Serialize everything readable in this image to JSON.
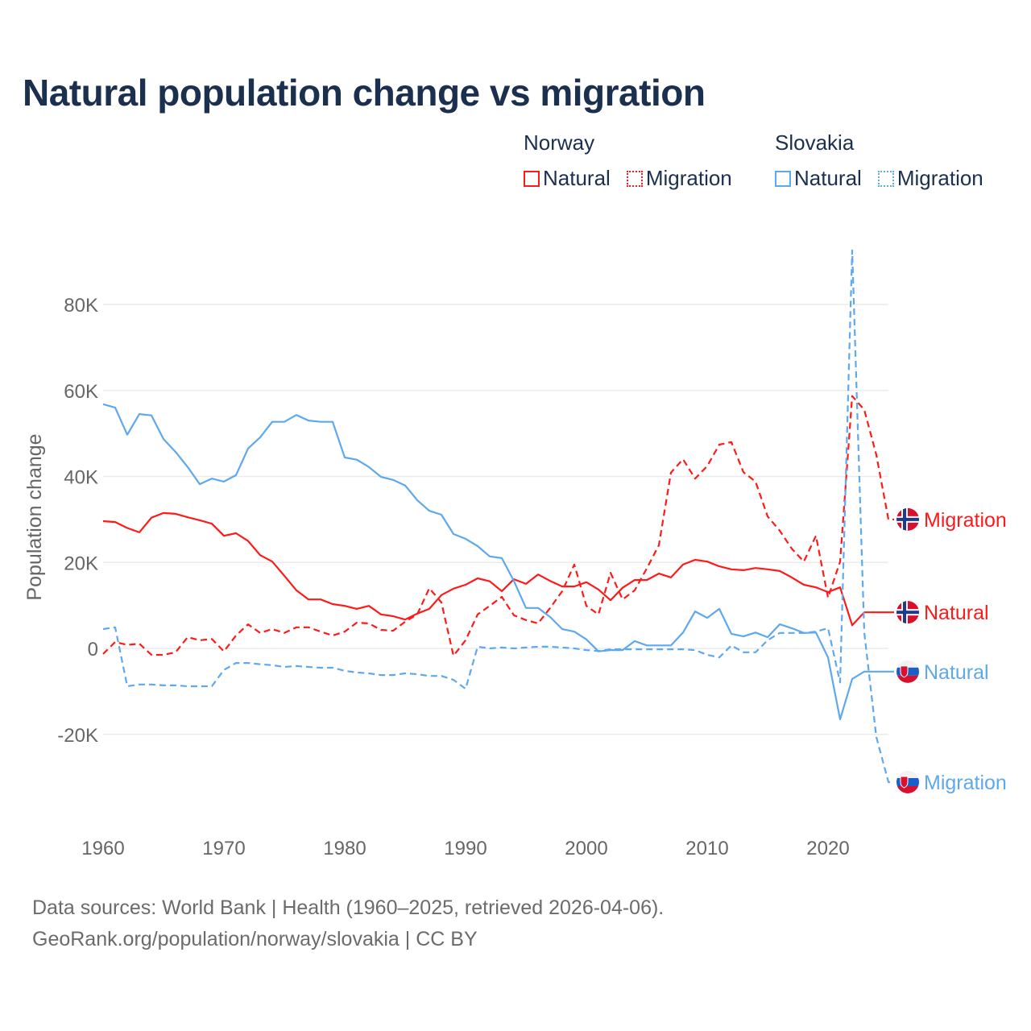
{
  "title": "Natural population change vs migration",
  "legend": {
    "groups": [
      {
        "country": "Norway",
        "items": [
          {
            "label": "Natural",
            "style": "solid",
            "color": "#ff1a1a"
          },
          {
            "label": "Migration",
            "style": "dotted",
            "color": "#ff1a1a"
          }
        ]
      },
      {
        "country": "Slovakia",
        "items": [
          {
            "label": "Natural",
            "style": "solid",
            "color": "#5ea8ee"
          },
          {
            "label": "Migration",
            "style": "dotted",
            "color": "#5ea8ee"
          }
        ]
      }
    ]
  },
  "footer": {
    "line1": "Data sources: World Bank | Health (1960–2025, retrieved 2026-04-06).",
    "line2": "GeoRank.org/population/norway/slovakia | CC BY"
  },
  "chart_data": {
    "type": "line",
    "title": "Natural population change vs migration",
    "xlabel": "",
    "ylabel": "Population change",
    "xlim": [
      1960,
      2025
    ],
    "ylim": [
      -35000,
      95000
    ],
    "grid": true,
    "xticks": [
      1960,
      1970,
      1980,
      1990,
      2000,
      2010,
      2020
    ],
    "yticks": [
      {
        "value": 80000,
        "label": "80K"
      },
      {
        "value": 60000,
        "label": "60K"
      },
      {
        "value": 40000,
        "label": "40K"
      },
      {
        "value": 20000,
        "label": "20K"
      },
      {
        "value": 0,
        "label": "0"
      },
      {
        "value": -20000,
        "label": "-20K"
      }
    ],
    "legend_placement": "top-right",
    "series": [
      {
        "name": "Norway Natural",
        "end_label": "Natural",
        "country": "Norway",
        "color": "#ff1a1a",
        "dash": false,
        "start": 1960,
        "values": [
          29.6,
          29.4,
          28,
          27,
          30.4,
          31.5,
          31.3,
          30.5,
          29.8,
          29,
          26.2,
          26.8,
          25,
          21.7,
          20.2,
          16.9,
          13.5,
          11.4,
          11.4,
          10.3,
          9.9,
          9.2,
          9.9,
          7.9,
          7.5,
          6.7,
          8.1,
          9.2,
          12.4,
          13.9,
          14.8,
          16.3,
          15.6,
          13.3,
          16.1,
          15,
          17.2,
          15.7,
          14.4,
          14.4,
          15.4,
          13.7,
          11.2,
          14.1,
          15.9,
          15.9,
          17.4,
          16.5,
          19.5,
          20.6,
          20.2,
          19.1,
          18.4,
          18.2,
          18.7,
          18.4,
          18,
          16.5,
          14.8,
          14.2,
          13.1,
          14.2,
          5.4,
          8.4
        ]
      },
      {
        "name": "Norway Migration",
        "end_label": "Migration",
        "country": "Norway",
        "color": "#ff1a1a",
        "dash": true,
        "start": 1960,
        "values": [
          -1.3,
          1.5,
          0.8,
          1.1,
          -1.5,
          -1.5,
          -0.9,
          2.6,
          1.9,
          2.2,
          -0.7,
          3,
          5.6,
          3.6,
          4.5,
          3.6,
          4.9,
          4.9,
          3.9,
          3,
          3.9,
          6,
          5.8,
          4.3,
          4.1,
          6.2,
          7.9,
          14,
          10.7,
          -1.7,
          1.9,
          7.9,
          9.9,
          12,
          7.7,
          6.6,
          5.8,
          9.4,
          13.3,
          19.5,
          9.9,
          7.9,
          17.6,
          11.4,
          13.5,
          18.6,
          24,
          40.9,
          44,
          39.5,
          42.4,
          47.4,
          48,
          41,
          38.8,
          30.7,
          27.4,
          23.2,
          20.2,
          26.2,
          11.8,
          20.2,
          58.7,
          55.5,
          45,
          30
        ]
      },
      {
        "name": "Slovakia Natural",
        "end_label": "Natural",
        "country": "Slovakia",
        "color": "#5ea8ee",
        "dash": false,
        "start": 1960,
        "values": [
          56.8,
          56,
          49.7,
          54.5,
          54.2,
          48.7,
          45.7,
          42.2,
          38.2,
          39.5,
          38.8,
          40.3,
          46.5,
          49.1,
          52.7,
          52.7,
          54.3,
          53,
          52.7,
          52.7,
          44.4,
          43.9,
          42.2,
          39.9,
          39.2,
          37.9,
          34.5,
          32,
          31.1,
          26.6,
          25.5,
          23.8,
          21.4,
          21,
          15.7,
          9.4,
          9.4,
          7.3,
          4.5,
          3.9,
          2.1,
          -0.7,
          -0.4,
          -0.4,
          1.7,
          0.7,
          0.7,
          0.7,
          3.7,
          8.6,
          7.1,
          9.2,
          3.4,
          2.8,
          3.7,
          2.6,
          5.6,
          4.7,
          3.6,
          3.7,
          -2.1,
          -16.5,
          -7.1,
          -5.4
        ]
      },
      {
        "name": "Slovakia Migration",
        "end_label": "Migration",
        "country": "Slovakia",
        "color": "#5ea8ee",
        "dash": true,
        "start": 1960,
        "values": [
          4.5,
          4.9,
          -8.8,
          -8.4,
          -8.4,
          -8.6,
          -8.6,
          -8.8,
          -8.8,
          -8.8,
          -5,
          -3.4,
          -3.4,
          -3.7,
          -3.9,
          -4.3,
          -4.1,
          -4.3,
          -4.5,
          -4.5,
          -5.2,
          -5.6,
          -5.8,
          -6.2,
          -6.2,
          -5.8,
          -6,
          -6.4,
          -6.4,
          -7.3,
          -9.4,
          0.4,
          0,
          0.2,
          0,
          0.2,
          0.4,
          0.4,
          0.2,
          0,
          -0.4,
          -0.6,
          -0.2,
          -0.2,
          -0.2,
          -0.2,
          -0.2,
          -0.2,
          -0.2,
          -0.4,
          -1.5,
          -2.1,
          0.7,
          -0.9,
          -0.9,
          1.9,
          3.6,
          3.6,
          3.6,
          3.9,
          4.7,
          -7.9,
          92.6,
          3.7,
          -20.6,
          -31.1
        ]
      }
    ],
    "value_unit": "thousands"
  }
}
